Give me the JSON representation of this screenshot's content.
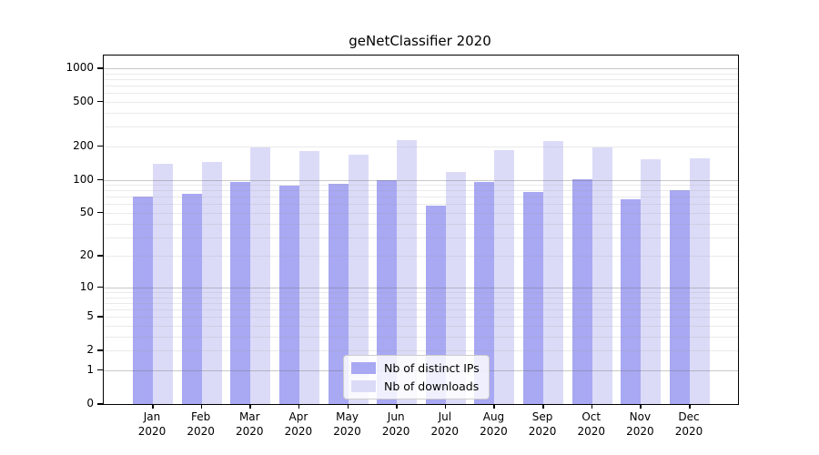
{
  "chart_data": {
    "type": "bar",
    "title": "geNetClassifier 2020",
    "categories": [
      "Jan",
      "Feb",
      "Mar",
      "Apr",
      "May",
      "Jun",
      "Jul",
      "Aug",
      "Sep",
      "Oct",
      "Nov",
      "Dec"
    ],
    "year": "2020",
    "series": [
      {
        "name": "Nb of distinct IPs",
        "color": "#a8a8f3",
        "values": [
          70,
          75,
          95,
          88,
          92,
          100,
          58,
          95,
          78,
          101,
          67,
          80
        ]
      },
      {
        "name": "Nb of downloads",
        "color": "#dbdbf8",
        "values": [
          138,
          145,
          195,
          180,
          169,
          228,
          117,
          185,
          223,
          195,
          154,
          155
        ]
      }
    ],
    "xlabel": "",
    "ylabel": "",
    "yscale": "log1p",
    "ylim": [
      0,
      1300
    ],
    "yticks": [
      0,
      1,
      2,
      5,
      10,
      20,
      50,
      100,
      200,
      500,
      1000
    ],
    "grid": true,
    "legend_position": "lower center"
  }
}
